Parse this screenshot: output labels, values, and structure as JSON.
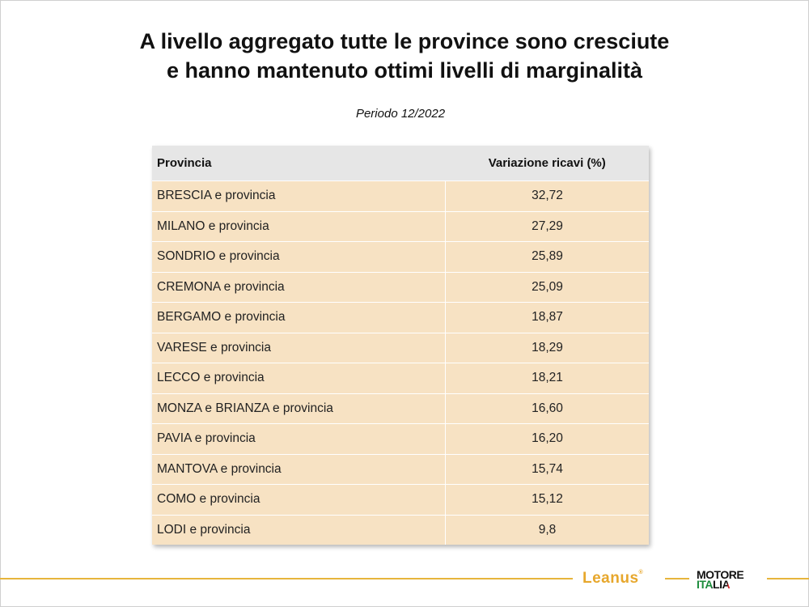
{
  "slide": {
    "title_line1": "A livello aggregato tutte le province sono cresciute",
    "title_line2": "e hanno mantenuto ottimi livelli di marginalità",
    "subtitle": "Periodo 12/2022"
  },
  "table": {
    "headers": [
      "Provincia",
      "Variazione ricavi (%)"
    ],
    "rows": [
      {
        "provincia": "BRESCIA e provincia",
        "variazione": "32,72"
      },
      {
        "provincia": "MILANO e provincia",
        "variazione": "27,29"
      },
      {
        "provincia": "SONDRIO e provincia",
        "variazione": "25,89"
      },
      {
        "provincia": "CREMONA e provincia",
        "variazione": "25,09"
      },
      {
        "provincia": "BERGAMO e provincia",
        "variazione": "18,87"
      },
      {
        "provincia": "VARESE e provincia",
        "variazione": "18,29"
      },
      {
        "provincia": "LECCO e provincia",
        "variazione": "18,21"
      },
      {
        "provincia": "MONZA e BRIANZA e provincia",
        "variazione": "16,60"
      },
      {
        "provincia": "PAVIA e provincia",
        "variazione": "16,20"
      },
      {
        "provincia": "MANTOVA e provincia",
        "variazione": "15,74"
      },
      {
        "provincia": "COMO e provincia",
        "variazione": "15,12"
      },
      {
        "provincia": "LODI e provincia",
        "variazione": "9,8"
      }
    ]
  },
  "footer": {
    "logo_leanus": "Leanus",
    "logo_leanus_mark": "®",
    "logo_motore_line1": "MOTORE",
    "logo_motore_line2": "ITALIA",
    "accent_color": "#e7b53c"
  }
}
